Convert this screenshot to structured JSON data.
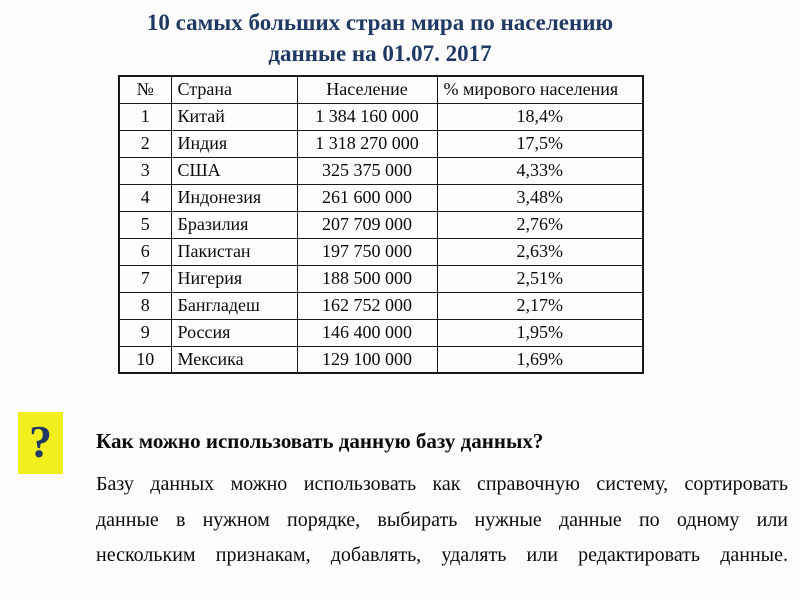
{
  "title": {
    "line1": "10 самых больших стран мира по населению",
    "line2": "данные на 01.07. 2017"
  },
  "table": {
    "headers": [
      "№",
      "Страна",
      "Население",
      "% мирового населения"
    ],
    "rows": [
      {
        "rank": "1",
        "country": "Китай",
        "population": "1 384 160 000",
        "share": "18,4%"
      },
      {
        "rank": "2",
        "country": "Индия",
        "population": "1 318 270 000",
        "share": "17,5%"
      },
      {
        "rank": "3",
        "country": "США",
        "population": "325 375 000",
        "share": "4,33%"
      },
      {
        "rank": "4",
        "country": "Индонезия",
        "population": "261 600 000",
        "share": "3,48%"
      },
      {
        "rank": "5",
        "country": "Бразилия",
        "population": "207 709 000",
        "share": "2,76%"
      },
      {
        "rank": "6",
        "country": "Пакистан",
        "population": "197 750 000",
        "share": "2,63%"
      },
      {
        "rank": "7",
        "country": "Нигерия",
        "population": "188 500 000",
        "share": "2,51%"
      },
      {
        "rank": "8",
        "country": "Бангладеш",
        "population": "162 752 000",
        "share": "2,17%"
      },
      {
        "rank": "9",
        "country": "Россия",
        "population": "146 400 000",
        "share": "1,95%"
      },
      {
        "rank": "10",
        "country": "Мексика",
        "population": "129 100 000",
        "share": "1,69%"
      }
    ]
  },
  "faq": {
    "icon_glyph": "?",
    "question": "Как можно использовать данную базу данных?",
    "answer_lines": [
      "Базу данных можно использовать как справочную систему, сортировать",
      "данные в нужном порядке, выбирать нужные данные по одному или",
      "нескольким признакам, добавлять, удалять или редактировать данные."
    ]
  },
  "colors": {
    "title_text": "#1f3864",
    "icon_background": "#f3ee1e",
    "icon_glyph": "#1f3864",
    "table_border": "#1a1a1a"
  }
}
